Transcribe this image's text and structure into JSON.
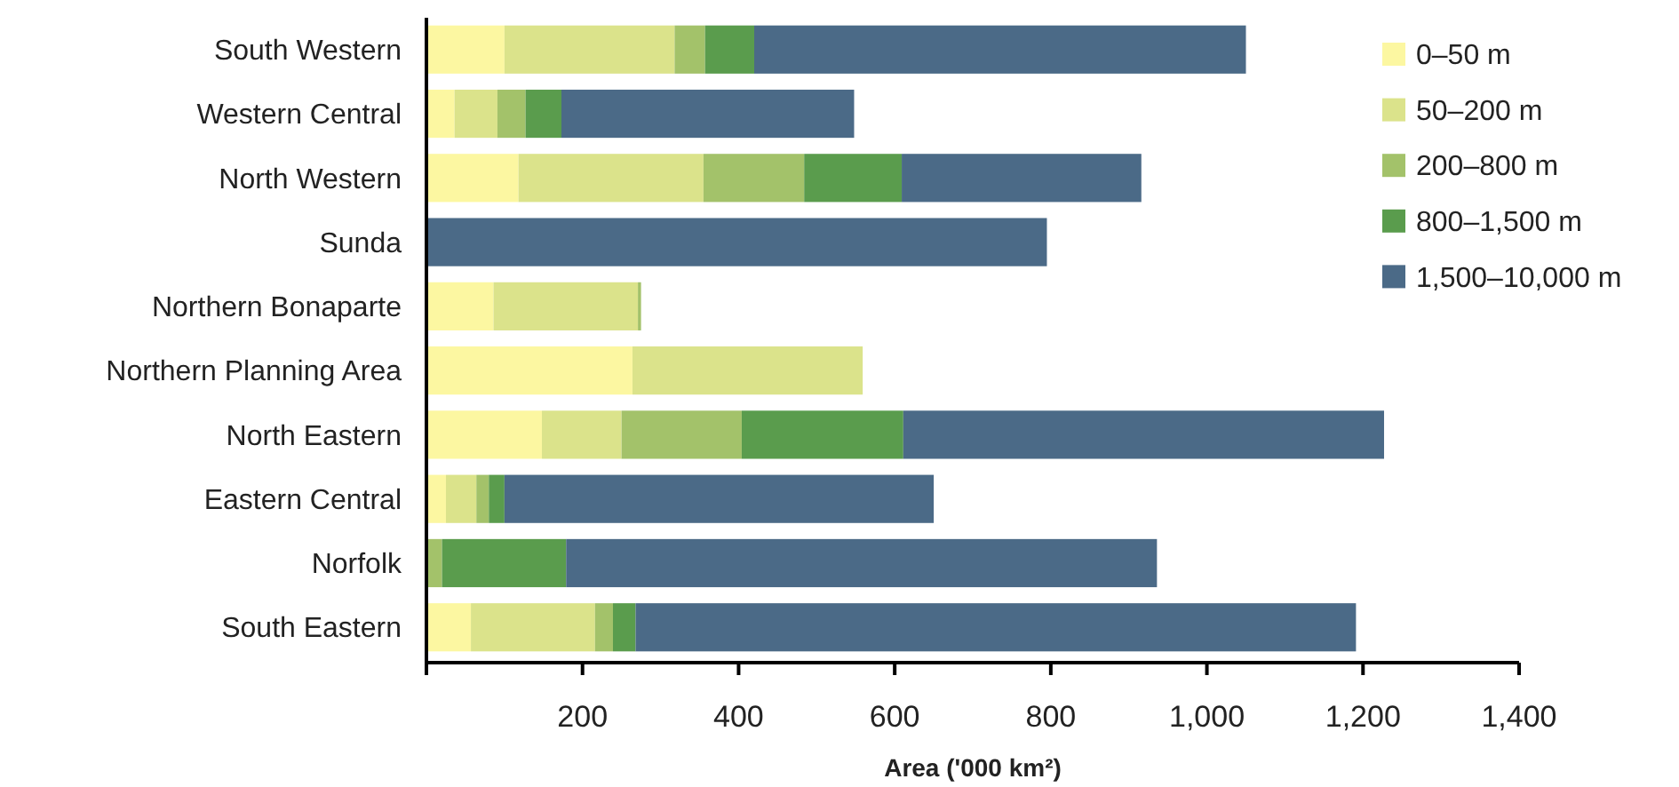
{
  "chart_data": {
    "type": "bar",
    "orientation": "horizontal",
    "stacked": true,
    "categories": [
      "South Western",
      "Western Central",
      "North Western",
      "Sunda",
      "Northern Bonaparte",
      "Northern Planning Area",
      "North Eastern",
      "Eastern Central",
      "Norfolk",
      "South Eastern"
    ],
    "series": [
      {
        "name": "0–50 m",
        "color": "#fcf7a1",
        "values": [
          100,
          36,
          118,
          0,
          86,
          264,
          148,
          25,
          0,
          57
        ]
      },
      {
        "name": "50–200 m",
        "color": "#dbe38b",
        "values": [
          218,
          55,
          237,
          0,
          185,
          295,
          102,
          39,
          0,
          159
        ]
      },
      {
        "name": "200–800 m",
        "color": "#a3c26a",
        "values": [
          39,
          36,
          129,
          0,
          4,
          0,
          154,
          16,
          20,
          23
        ]
      },
      {
        "name": "800–1,500 m",
        "color": "#5a9c4d",
        "values": [
          63,
          46,
          125,
          0,
          0,
          0,
          207,
          20,
          159,
          29
        ]
      },
      {
        "name": "1,500–10,000 m",
        "color": "#4b6a87",
        "values": [
          630,
          375,
          307,
          795,
          0,
          0,
          616,
          550,
          757,
          923
        ]
      }
    ],
    "xlim": [
      0,
      1400
    ],
    "xticks": [
      {
        "value": 0,
        "label": null
      },
      {
        "value": 200,
        "label": "200"
      },
      {
        "value": 400,
        "label": "400"
      },
      {
        "value": 600,
        "label": "600"
      },
      {
        "value": 800,
        "label": "800"
      },
      {
        "value": 1000,
        "label": "1,000"
      },
      {
        "value": 1200,
        "label": "1,200"
      },
      {
        "value": 1400,
        "label": "1,400"
      }
    ],
    "xlabel": "Area ('000 km²)",
    "legend": "top right",
    "grid": false
  }
}
